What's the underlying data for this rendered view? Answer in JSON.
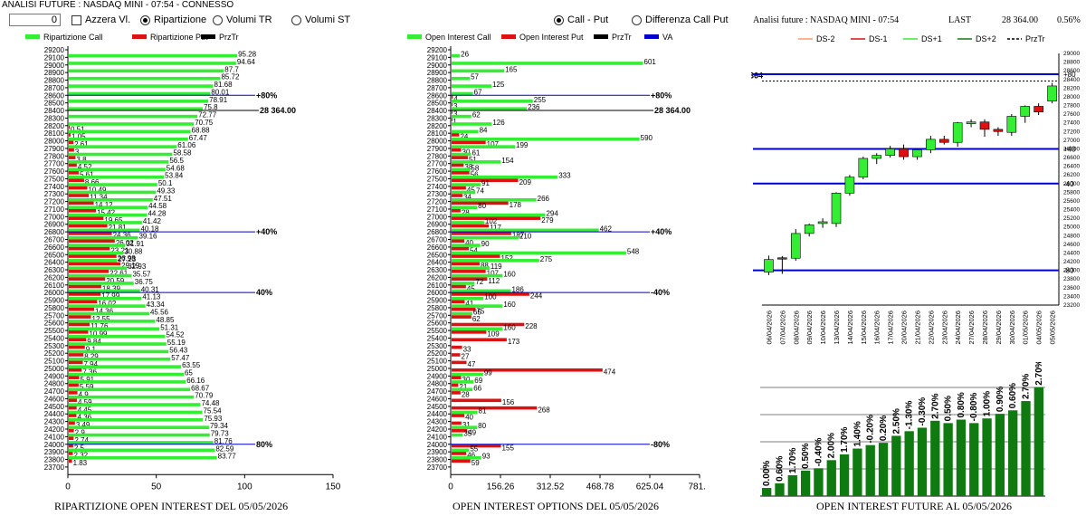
{
  "header": {
    "title": "ANALISI FUTURE : NASDAQ MINI - 07:54 - CONNESSO",
    "input_value": "0",
    "azzera_label": "Azzera Vl.",
    "radio_ripartizione": "Ripartizione",
    "radio_volumi_tr": "Volumi TR",
    "radio_volumi_st": "Volumi ST",
    "radio_call_put": "Call - Put",
    "radio_differenza": "Differenza Call Put"
  },
  "colors": {
    "green": "#33ee33",
    "red": "#dd1111",
    "blue": "#0000cc",
    "dark_green": "#0f7a0f"
  },
  "left_panel": {
    "legend": [
      "Ripartizione Call",
      "Ripartizione Put",
      "PrzTr"
    ],
    "xticks": [
      "0",
      "50",
      "100",
      "150"
    ],
    "footer": "RIPARTIZIONE OPEN INTEREST DEL 05/05/2026",
    "ref_lines": [
      {
        "strike": 28600,
        "label": "+80%"
      },
      {
        "strike": 28400,
        "label": "28 364.00"
      },
      {
        "strike": 26800,
        "label": "+40%"
      },
      {
        "strike": 26000,
        "label": "40%"
      },
      {
        "strike": 24000,
        "label": "80%"
      }
    ]
  },
  "middle_panel": {
    "legend": [
      "Open Interest Call",
      "Open Interest Put",
      "PrzTr",
      "VA"
    ],
    "xticks": [
      "0",
      "156.26",
      "312.52",
      "468.78",
      "625.04",
      "781.3"
    ],
    "footer": "OPEN INTEREST OPTIONS DEL 05/05/2026",
    "ref_lines": [
      {
        "strike": 28600,
        "label": "+80%"
      },
      {
        "strike": 28400,
        "label": "28 364.00"
      },
      {
        "strike": 26800,
        "label": "+40%"
      },
      {
        "strike": 26000,
        "label": "-40%"
      },
      {
        "strike": 24000,
        "label": "-80%"
      }
    ]
  },
  "right_panel": {
    "title": "Analisi future : NASDAQ MINI - 07:54",
    "last_label": "LAST",
    "last_value": "28 364.00",
    "change": "0.56%",
    "legend": [
      "DS-2",
      "DS-1",
      "DS+1",
      "DS+2",
      "PrzTr"
    ],
    "price_marker": "28364",
    "yticks": [
      "23200",
      "23400",
      "23600",
      "23800",
      "24000",
      "24200",
      "24400",
      "24600",
      "24800",
      "25000",
      "25200",
      "25400",
      "25600",
      "25800",
      "26000",
      "26200",
      "26400",
      "26600",
      "26800",
      "27000",
      "27200",
      "27400",
      "27600",
      "27800",
      "28000",
      "28200",
      "28400",
      "28600",
      "28800",
      "29000"
    ],
    "level_labels": [
      "+80",
      "+40",
      "-40",
      "-80"
    ],
    "footer": "OPEN INTEREST FUTURE AL 05/05/2026"
  },
  "strikes": [
    29200,
    29100,
    29000,
    28900,
    28800,
    28700,
    28600,
    28500,
    28400,
    28300,
    28200,
    28100,
    28000,
    27900,
    27800,
    27700,
    27600,
    27500,
    27400,
    27300,
    27200,
    27100,
    27000,
    26900,
    26800,
    26700,
    26600,
    26500,
    26400,
    26300,
    26200,
    26100,
    26000,
    25900,
    25800,
    25700,
    25600,
    25500,
    25400,
    25300,
    25200,
    25100,
    25000,
    24900,
    24800,
    24700,
    24600,
    24500,
    24400,
    24300,
    24200,
    24100,
    24000,
    23900,
    23800,
    23700
  ],
  "chart_data": [
    {
      "type": "bar",
      "title": "RIPARTIZIONE OPEN INTEREST DEL 05/05/2026",
      "categories": [
        29100,
        29000,
        28900,
        28800,
        28700,
        28600,
        28500,
        28400,
        28300,
        28200,
        28100,
        28000,
        27900,
        27800,
        27700,
        27600,
        27500,
        27400,
        27300,
        27200,
        27100,
        27000,
        26900,
        26800,
        26700,
        26600,
        26500,
        26400,
        26300,
        26200,
        26100,
        26000,
        25900,
        25800,
        25700,
        25600,
        25500,
        25400,
        25300,
        25200,
        25100,
        25000,
        24900,
        24800,
        24700,
        24600,
        24500,
        24400,
        24300,
        24200,
        24100,
        24000,
        23900,
        23800
      ],
      "series": [
        {
          "name": "Ripartizione Call",
          "values": [
            95.28,
            94.64,
            87.7,
            85.72,
            81.68,
            80.01,
            78.91,
            75.8,
            72.77,
            70.75,
            68.88,
            67.47,
            61.06,
            58.58,
            56.5,
            54.68,
            53.84,
            50.1,
            49.33,
            47.51,
            44.58,
            44.28,
            41.42,
            40.18,
            39.16,
            31.91,
            30.88,
            27.23,
            32.93,
            35.57,
            36.75,
            40.31,
            41.13,
            43.34,
            45.56,
            48.85,
            51.31,
            54.52,
            55.19,
            56.43,
            57.47,
            63.55,
            65,
            66.16,
            68.67,
            70.79,
            74.48,
            75.54,
            75.93,
            79.34,
            79.73,
            81.76,
            82.59,
            83.77
          ]
        },
        {
          "name": "Ripartizione Put",
          "values": [
            null,
            null,
            null,
            null,
            null,
            null,
            null,
            null,
            null,
            0.51,
            1.05,
            2.61,
            3,
            3.8,
            4.52,
            5.61,
            8.66,
            10.49,
            11.34,
            14.12,
            15.42,
            19.65,
            21.81,
            24.36,
            26.02,
            23.21,
            26.98,
            29.19,
            22.61,
            20.59,
            18.39,
            17.99,
            16.02,
            14.36,
            12.55,
            11.76,
            10.99,
            9.84,
            9.1,
            8.29,
            7.94,
            7.36,
            5.91,
            5.59,
            4.9,
            4.59,
            4.45,
            4.36,
            3.49,
            2.9,
            2.74,
            2.5,
            2.32,
            1.83
          ]
        }
      ],
      "xlim": [
        0,
        150
      ]
    },
    {
      "type": "bar",
      "title": "OPEN INTEREST OPTIONS DEL 05/05/2026",
      "categories": [
        29100,
        29000,
        28900,
        28800,
        28700,
        28600,
        28500,
        28400,
        28300,
        28200,
        28100,
        28000,
        27900,
        27800,
        27700,
        27600,
        27500,
        27400,
        27300,
        27200,
        27100,
        27000,
        26900,
        26800,
        26700,
        26600,
        26500,
        26400,
        26300,
        26200,
        26100,
        26000,
        25900,
        25800,
        25700,
        25600,
        25500,
        25400,
        25300,
        25200,
        25100,
        25000,
        24900,
        24800,
        24700,
        24600,
        24500,
        24400,
        24300,
        24200,
        24100,
        24000,
        23900,
        23800
      ],
      "series": [
        {
          "name": "Open Interest Call",
          "values": [
            26,
            601,
            165,
            57,
            125,
            67,
            255,
            236,
            62,
            126,
            84,
            590,
            199,
            61,
            154,
            58,
            333,
            91,
            74,
            266,
            80,
            294,
            102,
            462,
            210,
            90,
            548,
            275,
            119,
            160,
            72,
            186,
            100,
            160,
            65,
            null,
            160,
            null,
            null,
            null,
            null,
            null,
            99,
            69,
            66,
            null,
            null,
            81,
            null,
            80,
            35,
            null,
            55,
            93
          ]
        },
        {
          "name": "Open Interest Put",
          "values": [
            null,
            null,
            null,
            null,
            null,
            4,
            3,
            3,
            1,
            null,
            24,
            107,
            30,
            51,
            38,
            56,
            209,
            45,
            34,
            178,
            28,
            279,
            117,
            187,
            40,
            54,
            152,
            88,
            107,
            112,
            45,
            244,
            41,
            75,
            62,
            228,
            109,
            173,
            33,
            27,
            47,
            474,
            30,
            21,
            28,
            156,
            268,
            40,
            31,
            49,
            null,
            155,
            46,
            59
          ]
        }
      ],
      "xlim": [
        0,
        781.3
      ]
    },
    {
      "type": "bar",
      "title": "OPEN INTEREST FUTURE AL 05/05/2026",
      "categories": [
        "06/04/2026",
        "07/04/2026",
        "08/04/2026",
        "09/04/2026",
        "10/04/2026",
        "13/04/2026",
        "14/04/2026",
        "15/04/2026",
        "16/04/2026",
        "17/04/2026",
        "20/04/2026",
        "21/04/2026",
        "22/04/2026",
        "23/04/2026",
        "24/04/2026",
        "27/04/2026",
        "28/04/2026",
        "29/04/2026",
        "30/04/2026",
        "01/05/2026",
        "04/05/2026",
        "05/05/2026"
      ],
      "labels": [
        "0.00%",
        "0.60%",
        "1.70%",
        "0.50%",
        "-0.40%",
        "2.00%",
        "1.70%",
        "1.40%",
        "-0.20%",
        "0.20%",
        "2.50%",
        "-1.30%",
        "-0.30%",
        "2.70%",
        "0.50%",
        "0.80%",
        "-0.80%",
        "1.00%",
        "0.90%",
        "0.60%",
        "2.70%",
        "2.70%"
      ],
      "values": [
        0.7,
        1.1,
        1.8,
        2.2,
        2.4,
        3.1,
        3.6,
        4.1,
        4.4,
        4.6,
        5.2,
        5.6,
        5.9,
        6.5,
        6.3,
        6.6,
        6.3,
        6.7,
        7.1,
        7.4,
        8.2,
        9.4
      ]
    },
    {
      "type": "candlestick",
      "title": "Analisi future : NASDAQ MINI - 07:54",
      "x": [
        "06/04/2026",
        "07/04/2026",
        "08/04/2026",
        "09/04/2026",
        "10/04/2026",
        "13/04/2026",
        "14/04/2026",
        "15/04/2026",
        "16/04/2026",
        "17/04/2026",
        "20/04/2026",
        "21/04/2026",
        "22/04/2026",
        "23/04/2026",
        "24/04/2026",
        "27/04/2026",
        "28/04/2026",
        "29/04/2026",
        "30/04/2026",
        "01/05/2026",
        "04/05/2026",
        "05/05/2026"
      ],
      "ohlc": [
        [
          23960,
          24340,
          23890,
          24250
        ],
        [
          24290,
          24330,
          23920,
          24280
        ],
        [
          24280,
          24950,
          24220,
          24850
        ],
        [
          24850,
          25080,
          24780,
          25050
        ],
        [
          25080,
          25200,
          24980,
          25120
        ],
        [
          25080,
          25800,
          25000,
          25780
        ],
        [
          25780,
          26200,
          25720,
          26150
        ],
        [
          26150,
          26620,
          26100,
          26580
        ],
        [
          26580,
          26700,
          26450,
          26650
        ],
        [
          26650,
          26870,
          26600,
          26800
        ],
        [
          26800,
          26900,
          26550,
          26620
        ],
        [
          26620,
          26820,
          26550,
          26780
        ],
        [
          26780,
          27100,
          26700,
          27020
        ],
        [
          27020,
          27100,
          26900,
          26950
        ],
        [
          26950,
          27420,
          26850,
          27400
        ],
        [
          27380,
          27480,
          27300,
          27420
        ],
        [
          27420,
          27480,
          27080,
          27250
        ],
        [
          27250,
          27300,
          27100,
          27200
        ],
        [
          27180,
          27600,
          27100,
          27550
        ],
        [
          27550,
          27800,
          27400,
          27780
        ],
        [
          27780,
          27850,
          27580,
          27650
        ],
        [
          27900,
          28320,
          27850,
          28250
        ]
      ],
      "last_candle_open": 28280,
      "last_candle_close": 28364,
      "levels": [
        {
          "label": "+80",
          "value": 28520
        },
        {
          "label": "+40",
          "value": 26800
        },
        {
          "label": "-40",
          "value": 26000
        },
        {
          "label": "-80",
          "value": 24000
        }
      ],
      "ylim": [
        23200,
        29000
      ]
    }
  ]
}
